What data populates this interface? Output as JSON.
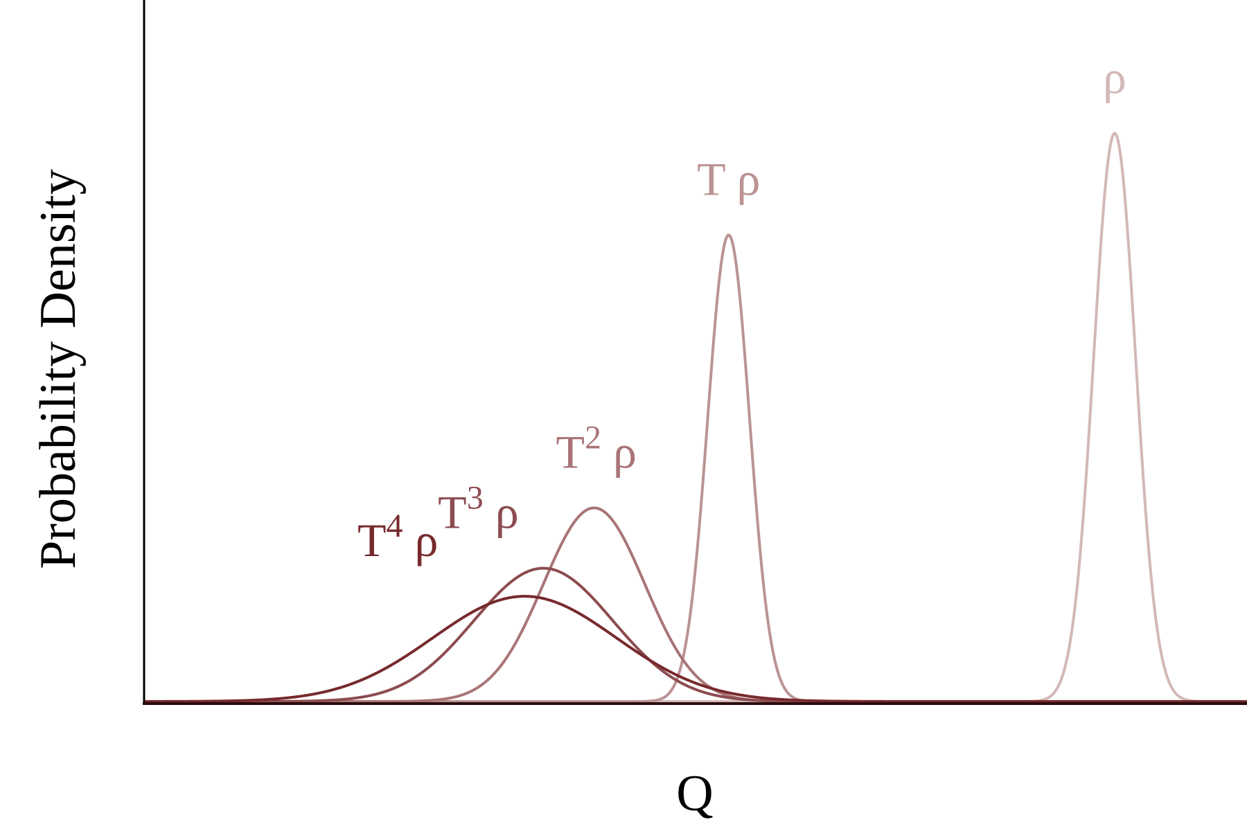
{
  "chart_data": {
    "type": "line",
    "xlabel": "Q",
    "ylabel": "Probability Density",
    "x_ticks": [],
    "y_ticks": [],
    "grid": false,
    "xlim": [
      0,
      100
    ],
    "ylim": [
      0,
      100
    ],
    "series": [
      {
        "name": "ρ",
        "label_main": "ρ",
        "label_sup": "",
        "label_tail": "",
        "color": "#d3b8b8",
        "mean": 88.0,
        "sd": 1.9,
        "peak": 81.0,
        "label_x": 88.0
      },
      {
        "name": "T ρ",
        "label_main": "T ρ",
        "label_sup": "",
        "label_tail": "",
        "color": "#bb9393",
        "mean": 53.0,
        "sd": 1.9,
        "peak": 66.5,
        "label_x": 53.0
      },
      {
        "name": "T2 ρ",
        "label_main": "T",
        "label_sup": "2",
        "label_tail": " ρ",
        "color": "#a97577",
        "mean": 40.8,
        "sd": 4.6,
        "peak": 27.6,
        "label_x": 41.0
      },
      {
        "name": "T3 ρ",
        "label_main": "T",
        "label_sup": "3",
        "label_tail": " ρ",
        "color": "#8c4c50",
        "mean": 36.2,
        "sd": 6.3,
        "peak": 19.0,
        "label_x": 30.3
      },
      {
        "name": "T4 ρ",
        "label_main": "T",
        "label_sup": "4",
        "label_tail": " ρ",
        "color": "#772a2d",
        "mean": 34.5,
        "sd": 8.3,
        "peak": 15.0,
        "label_x": 23.0
      }
    ]
  }
}
